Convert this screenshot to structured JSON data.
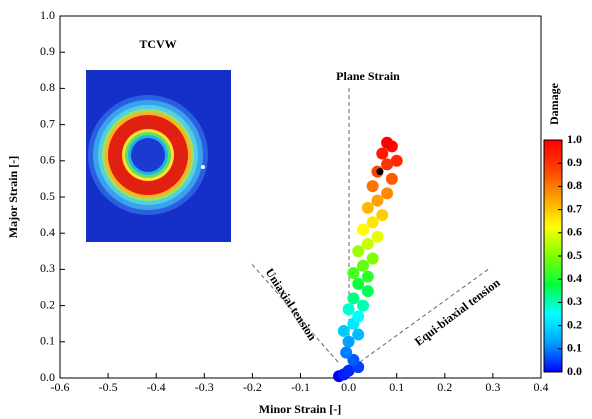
{
  "chart_data": {
    "type": "scatter",
    "xlabel": "Minor Strain [-]",
    "ylabel": "Major Strain [-]",
    "xlim": [
      -0.6,
      0.4
    ],
    "xticks": [
      -0.6,
      -0.5,
      -0.4,
      -0.3,
      -0.2,
      -0.1,
      {
        "value": 0,
        "label": "0.0"
      },
      0.1,
      0.2,
      0.3,
      0.4
    ],
    "ylim": [
      0,
      1
    ],
    "yticks": [
      {
        "value": 0,
        "label": "0.0"
      },
      0.1,
      0.2,
      0.3,
      0.4,
      0.5,
      0.6,
      0.7,
      0.8,
      0.9,
      {
        "value": 1,
        "label": "1.0"
      }
    ],
    "annotations": {
      "inset": "TCVW",
      "plane": "Plane Strain",
      "uniaxial": "Uniaxial tension",
      "biaxial": "Equi-biaxial tension"
    },
    "series": [
      {
        "x": [
          -0.02,
          -0.01,
          0.0,
          0.02,
          0.01,
          -0.005,
          0.0,
          0.02,
          -0.01,
          0.01,
          0.02,
          0.0,
          0.03,
          0.01,
          0.04,
          0.02,
          0.04,
          0.01,
          0.03,
          0.05,
          0.02,
          0.04,
          0.06,
          0.03,
          0.05,
          0.07,
          0.04,
          0.06,
          0.08,
          0.05,
          0.09,
          0.06,
          0.08,
          0.1,
          0.07,
          0.09,
          0.08
        ],
        "y": [
          0.005,
          0.01,
          0.02,
          0.03,
          0.05,
          0.07,
          0.1,
          0.12,
          0.13,
          0.15,
          0.17,
          0.19,
          0.2,
          0.22,
          0.24,
          0.26,
          0.28,
          0.29,
          0.31,
          0.33,
          0.35,
          0.37,
          0.39,
          0.41,
          0.43,
          0.45,
          0.47,
          0.49,
          0.51,
          0.53,
          0.55,
          0.57,
          0.59,
          0.6,
          0.62,
          0.64,
          0.65
        ],
        "damage": [
          0.0,
          0.02,
          0.03,
          0.05,
          0.07,
          0.1,
          0.13,
          0.16,
          0.18,
          0.22,
          0.25,
          0.28,
          0.3,
          0.33,
          0.36,
          0.39,
          0.42,
          0.44,
          0.47,
          0.5,
          0.53,
          0.57,
          0.6,
          0.63,
          0.66,
          0.69,
          0.72,
          0.75,
          0.78,
          0.81,
          0.84,
          0.87,
          0.9,
          0.92,
          0.95,
          0.98,
          1.0
        ]
      }
    ],
    "highlight": {
      "x": 0.065,
      "y": 0.57,
      "color": "#000000"
    },
    "colorbar": {
      "title": "Damage",
      "lim": [
        0,
        1
      ],
      "ticks": [
        {
          "value": 0,
          "label": "0.0"
        },
        0.1,
        0.2,
        0.3,
        0.4,
        0.5,
        0.6,
        0.7,
        0.8,
        0.9,
        {
          "value": 1,
          "label": "1.0"
        }
      ],
      "colors": [
        "#0000ff",
        "#00a0ff",
        "#00ffff",
        "#00ff40",
        "#80ff00",
        "#ffff00",
        "#ffa000",
        "#ff4000",
        "#ff0000"
      ]
    }
  }
}
